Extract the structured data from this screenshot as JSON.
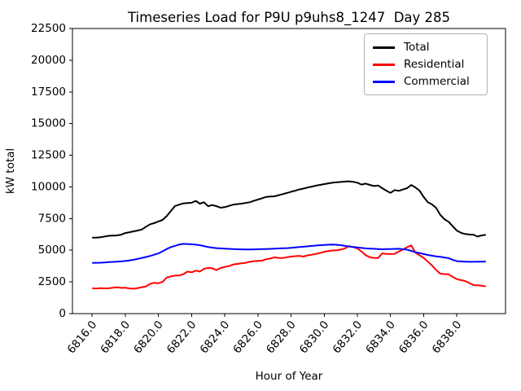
{
  "chart_data": {
    "type": "line",
    "title": "Timeseries Load for P9U p9uhs8_1247  Day 285",
    "xlabel": "Hour of Year",
    "ylabel": "kW total",
    "grid": false,
    "legend_position": "upper right",
    "xlim": [
      6814.8125,
      6840.9375
    ],
    "ylim": [
      0,
      22500
    ],
    "x_ticks": [
      6816,
      6818,
      6820,
      6822,
      6824,
      6826,
      6828,
      6830,
      6832,
      6834,
      6836,
      6838
    ],
    "x_tick_labels": [
      "6816.0",
      "6818.0",
      "6820.0",
      "6822.0",
      "6824.0",
      "6826.0",
      "6828.0",
      "6830.0",
      "6832.0",
      "6834.0",
      "6836.0",
      "6838.0"
    ],
    "y_ticks": [
      0,
      2500,
      5000,
      7500,
      10000,
      12500,
      15000,
      17500,
      20000,
      22500
    ],
    "y_tick_labels": [
      "0",
      "2500",
      "5000",
      "7500",
      "10000",
      "12500",
      "15000",
      "17500",
      "20000",
      "22500"
    ],
    "x": [
      6816.0,
      6816.25,
      6816.5,
      6816.75,
      6817.0,
      6817.25,
      6817.5,
      6817.75,
      6818.0,
      6818.25,
      6818.5,
      6818.75,
      6819.0,
      6819.25,
      6819.5,
      6819.75,
      6820.0,
      6820.25,
      6820.5,
      6820.75,
      6821.0,
      6821.25,
      6821.5,
      6821.75,
      6822.0,
      6822.25,
      6822.5,
      6822.75,
      6823.0,
      6823.25,
      6823.5,
      6823.75,
      6824.0,
      6824.25,
      6824.5,
      6824.75,
      6825.0,
      6825.25,
      6825.5,
      6825.75,
      6826.0,
      6826.25,
      6826.5,
      6826.75,
      6827.0,
      6827.25,
      6827.5,
      6827.75,
      6828.0,
      6828.25,
      6828.5,
      6828.75,
      6829.0,
      6829.25,
      6829.5,
      6829.75,
      6830.0,
      6830.25,
      6830.5,
      6830.75,
      6831.0,
      6831.25,
      6831.5,
      6831.75,
      6832.0,
      6832.25,
      6832.5,
      6832.75,
      6833.0,
      6833.25,
      6833.5,
      6833.75,
      6834.0,
      6834.25,
      6834.5,
      6834.75,
      6835.0,
      6835.25,
      6835.5,
      6835.75,
      6836.0,
      6836.25,
      6836.5,
      6836.75,
      6837.0,
      6837.25,
      6837.5,
      6837.75,
      6838.0,
      6838.25,
      6838.5,
      6838.75,
      6839.0,
      6839.25,
      6839.5,
      6839.75
    ],
    "series": [
      {
        "name": "Total",
        "color": "#000000",
        "values": [
          6000,
          5990,
          6030,
          6080,
          6140,
          6150,
          6170,
          6230,
          6360,
          6420,
          6490,
          6560,
          6640,
          6860,
          7050,
          7140,
          7280,
          7390,
          7700,
          8100,
          8490,
          8600,
          8700,
          8730,
          8750,
          8900,
          8680,
          8790,
          8480,
          8570,
          8480,
          8360,
          8400,
          8500,
          8600,
          8640,
          8680,
          8730,
          8790,
          8900,
          9000,
          9100,
          9210,
          9240,
          9260,
          9350,
          9430,
          9520,
          9620,
          9700,
          9800,
          9870,
          9950,
          10020,
          10100,
          10160,
          10220,
          10280,
          10330,
          10360,
          10390,
          10420,
          10440,
          10400,
          10330,
          10180,
          10260,
          10160,
          10070,
          10110,
          9900,
          9700,
          9530,
          9750,
          9690,
          9800,
          9900,
          10150,
          9960,
          9700,
          9200,
          8800,
          8620,
          8350,
          7800,
          7450,
          7250,
          6900,
          6550,
          6380,
          6280,
          6240,
          6230,
          6080,
          6170,
          6220
        ]
      },
      {
        "name": "Residential",
        "color": "#ff0000",
        "values": [
          2000,
          1980,
          2010,
          1990,
          2000,
          2040,
          2080,
          2030,
          2040,
          1990,
          1960,
          2020,
          2080,
          2150,
          2350,
          2430,
          2400,
          2500,
          2850,
          2940,
          3000,
          3000,
          3110,
          3320,
          3260,
          3390,
          3320,
          3540,
          3600,
          3580,
          3430,
          3600,
          3690,
          3750,
          3870,
          3920,
          3970,
          4000,
          4090,
          4140,
          4160,
          4180,
          4290,
          4350,
          4440,
          4400,
          4390,
          4450,
          4500,
          4530,
          4560,
          4500,
          4600,
          4650,
          4720,
          4780,
          4880,
          4930,
          4980,
          5000,
          5050,
          5150,
          5330,
          5250,
          5140,
          4900,
          4610,
          4450,
          4400,
          4390,
          4760,
          4710,
          4710,
          4720,
          4900,
          5050,
          5250,
          5380,
          4820,
          4600,
          4400,
          4100,
          3800,
          3450,
          3150,
          3120,
          3100,
          2900,
          2720,
          2640,
          2570,
          2420,
          2250,
          2230,
          2200,
          2150
        ]
      },
      {
        "name": "Commercial",
        "color": "#0000ff",
        "values": [
          4000,
          4010,
          4020,
          4040,
          4060,
          4080,
          4100,
          4120,
          4150,
          4200,
          4250,
          4320,
          4400,
          4470,
          4550,
          4650,
          4750,
          4920,
          5100,
          5250,
          5350,
          5450,
          5500,
          5490,
          5470,
          5440,
          5400,
          5330,
          5250,
          5210,
          5170,
          5150,
          5130,
          5110,
          5090,
          5080,
          5070,
          5060,
          5060,
          5070,
          5080,
          5090,
          5100,
          5110,
          5130,
          5140,
          5160,
          5170,
          5190,
          5220,
          5250,
          5280,
          5310,
          5340,
          5370,
          5400,
          5420,
          5440,
          5450,
          5430,
          5400,
          5350,
          5300,
          5260,
          5220,
          5180,
          5150,
          5130,
          5120,
          5100,
          5080,
          5090,
          5100,
          5110,
          5120,
          5080,
          5050,
          4950,
          4850,
          4780,
          4700,
          4630,
          4570,
          4520,
          4480,
          4430,
          4380,
          4250,
          4140,
          4120,
          4100,
          4090,
          4090,
          4095,
          4100,
          4110
        ]
      }
    ]
  }
}
